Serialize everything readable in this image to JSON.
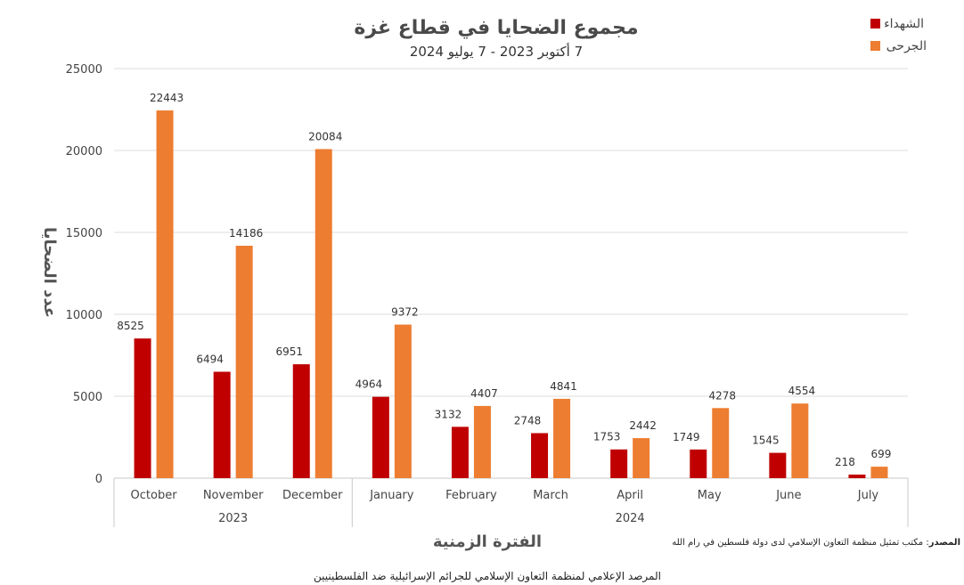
{
  "chart_data": {
    "type": "bar",
    "title": "مجموع الضحايا في قطاع غزة",
    "subtitle": "7 أكتوبر 2023  - 7 يوليو 2024",
    "xlabel": "الفترة الزمنية",
    "ylabel": "عدد الضحايا",
    "ylim": [
      0,
      25000
    ],
    "yticks": [
      0,
      5000,
      10000,
      15000,
      20000,
      25000
    ],
    "grid": true,
    "legend_position": "top-right",
    "categories": [
      "October",
      "November",
      "December",
      "January",
      "February",
      "March",
      "April",
      "May",
      "June",
      "July"
    ],
    "groups": [
      {
        "label": "2023",
        "from": 0,
        "to": 2
      },
      {
        "label": "2024",
        "from": 3,
        "to": 9
      }
    ],
    "series": [
      {
        "name": "الشهداء",
        "color": "#C00000",
        "values": [
          8525,
          6494,
          6951,
          4964,
          3132,
          2748,
          1753,
          1749,
          1545,
          218
        ]
      },
      {
        "name": "الجرحى",
        "color": "#ED7D31",
        "values": [
          22443,
          14186,
          20084,
          9372,
          4407,
          4841,
          2442,
          4278,
          4554,
          699
        ]
      }
    ]
  },
  "source_label": "المصدر",
  "source_text": ": مكتب تمثيل منظمة التعاون الإسلامي لدى دولة فلسطين في رام الله",
  "footer": "المرصد الإعلامي لمنظمة التعاون الإسلامي للجرائم الإسرائيلية ضد الفلسطينيين"
}
